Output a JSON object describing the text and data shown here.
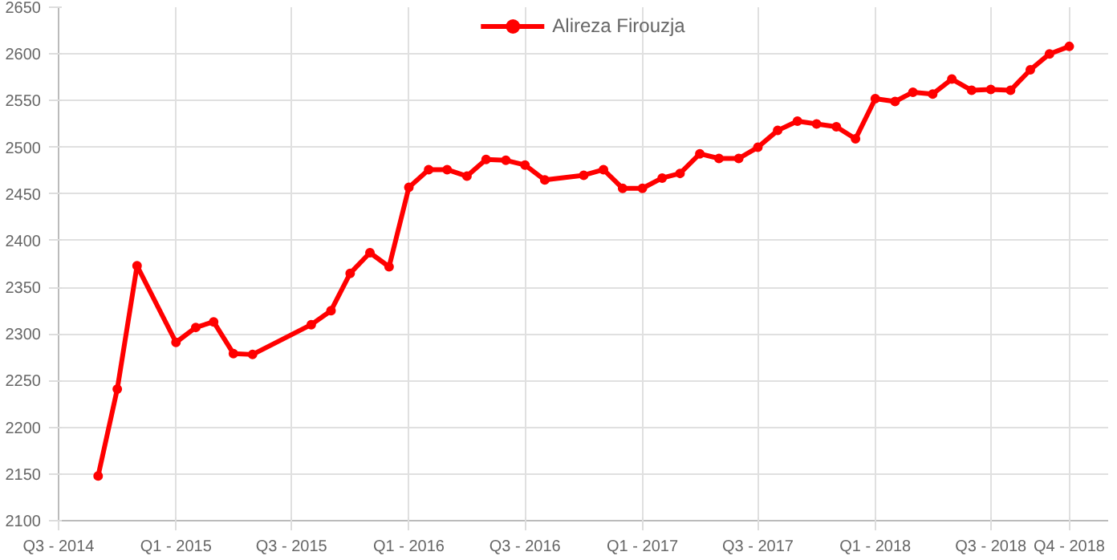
{
  "chart_data": {
    "type": "line",
    "x": [
      "2014-09",
      "2014-10",
      "2014-11",
      "2015-01",
      "2015-02",
      "2015-03",
      "2015-04",
      "2015-05",
      "2015-08",
      "2015-09",
      "2015-10",
      "2015-11",
      "2015-12",
      "2016-01",
      "2016-02",
      "2016-03",
      "2016-04",
      "2016-05",
      "2016-06",
      "2016-07",
      "2016-08",
      "2016-10",
      "2016-11",
      "2016-12",
      "2017-01",
      "2017-02",
      "2017-03",
      "2017-04",
      "2017-05",
      "2017-06",
      "2017-07",
      "2017-08",
      "2017-09",
      "2017-10",
      "2017-11",
      "2017-12",
      "2018-01",
      "2018-02",
      "2018-03",
      "2018-04",
      "2018-05",
      "2018-06",
      "2018-07",
      "2018-08",
      "2018-09",
      "2018-10",
      "2018-11"
    ],
    "series": [
      {
        "name": "Alireza Firouzja",
        "color": "#ff0000",
        "values": [
          2148,
          2241,
          2373,
          2291,
          2307,
          2313,
          2279,
          2278,
          2310,
          2325,
          2365,
          2387,
          2372,
          2457,
          2476,
          2476,
          2469,
          2487,
          2486,
          2481,
          2465,
          2470,
          2476,
          2456,
          2456,
          2467,
          2472,
          2493,
          2488,
          2488,
          2500,
          2518,
          2528,
          2525,
          2522,
          2509,
          2552,
          2549,
          2559,
          2557,
          2573,
          2561,
          2562,
          2561,
          2583,
          2600,
          2608
        ]
      }
    ],
    "xlim": [
      "2014-07",
      "2019-01"
    ],
    "xticks": [
      {
        "value": "2014-07",
        "label": "Q3 - 2014"
      },
      {
        "value": "2015-01",
        "label": "Q1 - 2015"
      },
      {
        "value": "2015-07",
        "label": "Q3 - 2015"
      },
      {
        "value": "2016-01",
        "label": "Q1 - 2016"
      },
      {
        "value": "2016-07",
        "label": "Q3 - 2016"
      },
      {
        "value": "2017-01",
        "label": "Q1 - 2017"
      },
      {
        "value": "2017-07",
        "label": "Q3 - 2017"
      },
      {
        "value": "2018-01",
        "label": "Q1 - 2018"
      },
      {
        "value": "2018-07",
        "label": "Q3 - 2018"
      },
      {
        "value": "2018-11",
        "label": "Q4 - 2018"
      }
    ],
    "ylim": [
      2100,
      2650
    ],
    "yticks": [
      2100,
      2150,
      2200,
      2250,
      2300,
      2350,
      2400,
      2450,
      2500,
      2550,
      2600,
      2650
    ],
    "grid": true,
    "legend": "top",
    "marker": "circle",
    "line_style": "solid"
  }
}
